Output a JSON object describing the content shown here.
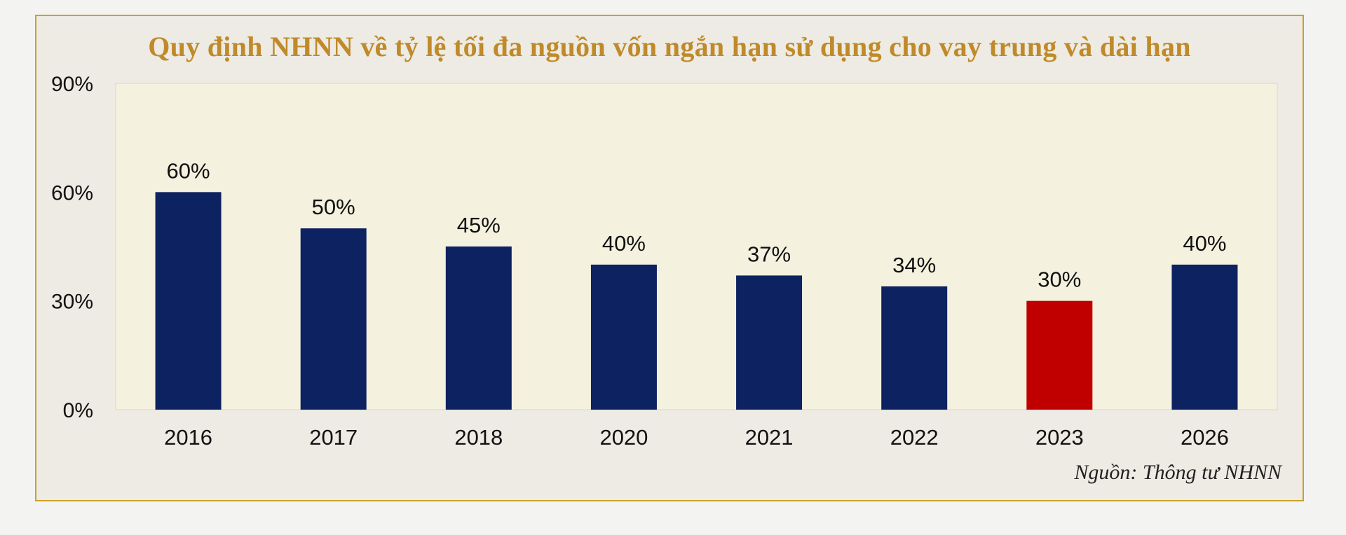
{
  "chart_data": {
    "type": "bar",
    "title": "Quy định  NHNN về tỷ lệ tối đa nguồn  vốn ngắn hạn sử dụng  cho vay trung  và dài hạn",
    "categories": [
      "2016",
      "2017",
      "2018",
      "2020",
      "2021",
      "2022",
      "2023",
      "2026"
    ],
    "values": [
      60,
      50,
      45,
      40,
      37,
      34,
      30,
      40
    ],
    "data_labels": [
      "60%",
      "50%",
      "45%",
      "40%",
      "37%",
      "34%",
      "30%",
      "40%"
    ],
    "yticks": [
      0,
      30,
      60,
      90
    ],
    "ytick_labels": [
      "0%",
      "30%",
      "60%",
      "90%"
    ],
    "ylim": [
      0,
      90
    ],
    "grid": false,
    "legend": "none",
    "colors": {
      "bar": "#0d2260",
      "highlight_bar": "#c00000",
      "highlight_index": 6,
      "plot_background": "#f4f1df",
      "title": "#c08a2a",
      "border": "#c9a227"
    }
  },
  "source_note": "Nguồn: Thông tư NHNN"
}
